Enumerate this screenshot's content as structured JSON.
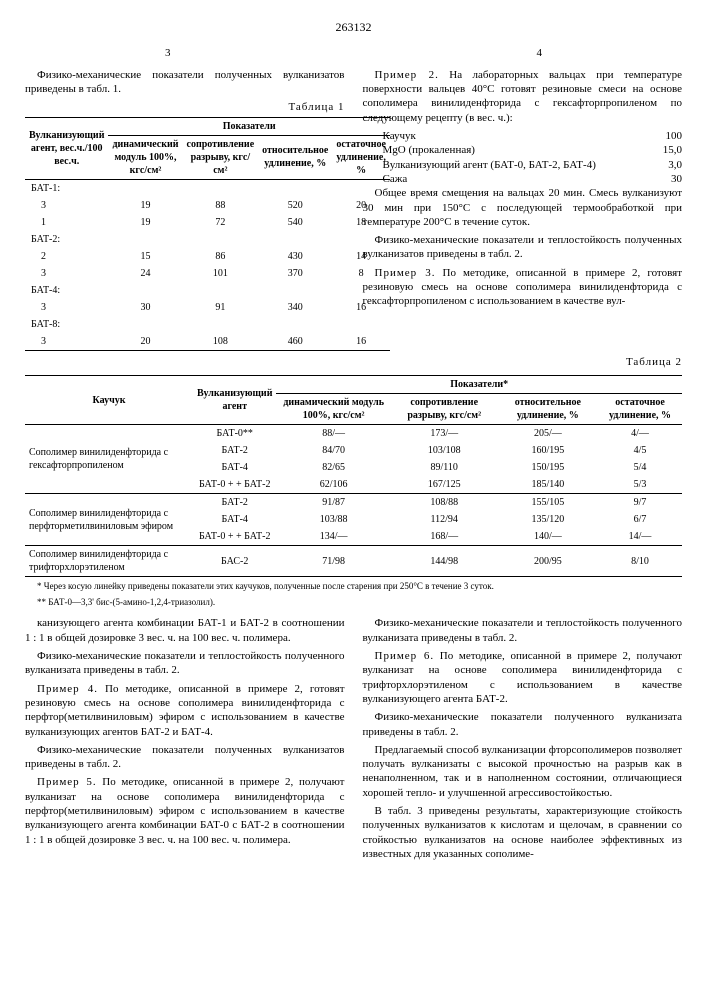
{
  "header": {
    "doc_number": "263132",
    "col_left": "3",
    "col_right": "4"
  },
  "left": {
    "intro": "Физико-механические показатели полученных вулканизатов приведены в табл. 1.",
    "table1_caption": "Таблица 1",
    "table1": {
      "head_main": "Показатели",
      "head_agent": "Вулканизующий агент, вес.ч./100 вес.ч.",
      "cols": [
        "динамический модуль 100%, кгс/см²",
        "сопротивление разрыву, кгс/см²",
        "относительное удлинение, %",
        "остаточное удлинение, %"
      ],
      "groups": [
        {
          "name": "БАТ-1:",
          "rows": [
            [
              "3",
              "19",
              "88",
              "520",
              "20"
            ],
            [
              "1",
              "19",
              "72",
              "540",
              "18"
            ]
          ]
        },
        {
          "name": "БАТ-2:",
          "rows": [
            [
              "2",
              "15",
              "86",
              "430",
              "14"
            ],
            [
              "3",
              "24",
              "101",
              "370",
              "8"
            ]
          ]
        },
        {
          "name": "БАТ-4:",
          "rows": [
            [
              "3",
              "30",
              "91",
              "340",
              "16"
            ]
          ]
        },
        {
          "name": "БАТ-8:",
          "rows": [
            [
              "3",
              "20",
              "108",
              "460",
              "16"
            ]
          ]
        }
      ]
    }
  },
  "right": {
    "p1a": "Пример 2. На лабораторных вальцах при температуре поверхности вальцев 40°С готовят резиновые смеси на основе сополимера винилиденфторида с гексафторпропиленом по следующему рецепту (в вес. ч.):",
    "recipe": [
      [
        "Каучук",
        "100"
      ],
      [
        "MgO (прокаленная)",
        "15,0"
      ],
      [
        "Вулканизующий агент (БАТ-0, БАТ-2, БАТ-4)",
        "3,0"
      ],
      [
        "Сажа",
        "30"
      ]
    ],
    "p2": "Общее время смещения на вальцах 20 мин. Смесь вулканизуют 30 мин при 150°С с последующей термообработкой при температуре 200°С в течение суток.",
    "p3": "Физико-механические показатели и теплостойкость полученных вулканизатов приведены в табл. 2.",
    "p4": "Пример 3. По методике, описанной в примере 2, готовят резиновую смесь на основе сополимера винилиденфторида с гексафторпропиленом с использованием в качестве вул-"
  },
  "table2_caption": "Таблица 2",
  "table2": {
    "head_rubber": "Каучук",
    "head_agent": "Вулканизующий агент",
    "head_main": "Показатели*",
    "cols": [
      "динамический модуль 100%, кгс/см²",
      "сопротивление разрыву, кгс/см²",
      "относительное удлинение, %",
      "остаточное удлинение, %"
    ],
    "groups": [
      {
        "rubber": "Сополимер винилиденфторида с гексафторпропиленом",
        "rows": [
          [
            "БАТ-0**",
            "88/—",
            "173/—",
            "205/—",
            "4/—"
          ],
          [
            "БАТ-2",
            "84/70",
            "103/108",
            "160/195",
            "4/5"
          ],
          [
            "БАТ-4",
            "82/65",
            "89/110",
            "150/195",
            "5/4"
          ],
          [
            "БАТ-0 + + БАТ-2",
            "62/106",
            "167/125",
            "185/140",
            "5/3"
          ]
        ]
      },
      {
        "rubber": "Сополимер винилиденфторида с перфторметилвиниловым эфиром",
        "rows": [
          [
            "БАТ-2",
            "91/87",
            "108/88",
            "155/105",
            "9/7"
          ],
          [
            "БАТ-4",
            "103/88",
            "112/94",
            "135/120",
            "6/7"
          ],
          [
            "БАТ-0 + + БАТ-2",
            "134/—",
            "168/—",
            "140/—",
            "14/—"
          ]
        ]
      },
      {
        "rubber": "Сополимер винилиденфторида с трифторхлорэтиленом",
        "rows": [
          [
            "БАС-2",
            "71/98",
            "144/98",
            "200/95",
            "8/10"
          ]
        ]
      }
    ],
    "footnote1": "* Через косую линейку приведены показатели этих каучуков, полученные после старения при 250°С в течение 3 суток.",
    "footnote2": "** БАТ-0—3,3' бис-(5-амино-1,2,4-триазолил)."
  },
  "bottom_left": {
    "p1": "канизующего агента комбинации БАТ-1 и БАТ-2 в соотношении 1 : 1 в общей дозировке 3 вес. ч. на 100 вес. ч. полимера.",
    "p2": "Физико-механические показатели и теплостойкость полученного вулканизата приведены в табл. 2.",
    "p3": "Пример 4. По методике, описанной в примере 2, готовят резиновую смесь на основе сополимера винилиденфторида с перфтор(метилвиниловым) эфиром с использованием в качестве вулканизующих агентов БАТ-2 и БАТ-4.",
    "p4": "Физико-механические показатели полученных вулканизатов приведены в табл. 2.",
    "p5": "Пример 5. По методике, описанной в примере 2, получают вулканизат на основе сополимера винилиденфторида с перфтор(метилвиниловым) эфиром с использованием в качестве вулканизующего агента комбинации БАТ-0 с БАТ-2 в соотношении 1 : 1 в общей дозировке 3 вес. ч. на 100 вес. ч. полимера."
  },
  "bottom_right": {
    "p1": "Физико-механические показатели и теплостойкость полученного вулканизата приведены в табл. 2.",
    "p2": "Пример 6. По методике, описанной в примере 2, получают вулканизат на основе сополимера винилиденфторида с трифторхлорэтиленом с использованием в качестве вулканизующего агента БАТ-2.",
    "p3": "Физико-механические показатели полученного вулканизата приведены в табл. 2.",
    "p4": "Предлагаемый способ вулканизации фторсополимеров позволяет получать вулканизаты с высокой прочностью на разрыв как в ненаполненном, так и в наполненном состоянии, отличающиеся хорошей тепло- и улучшенной агрессивостойкостью.",
    "p5": "В табл. 3 приведены результаты, характеризующие стойкость полученных вулканизатов к кислотам и щелочам, в сравнении со стойкостью вулканизатов на основе наиболее эффективных из известных для указанных сополиме-"
  },
  "line_markers": [
    "5",
    "10",
    "15",
    "20",
    "25",
    "30",
    "35",
    "40",
    "45",
    "50",
    "55",
    "60",
    "65"
  ]
}
